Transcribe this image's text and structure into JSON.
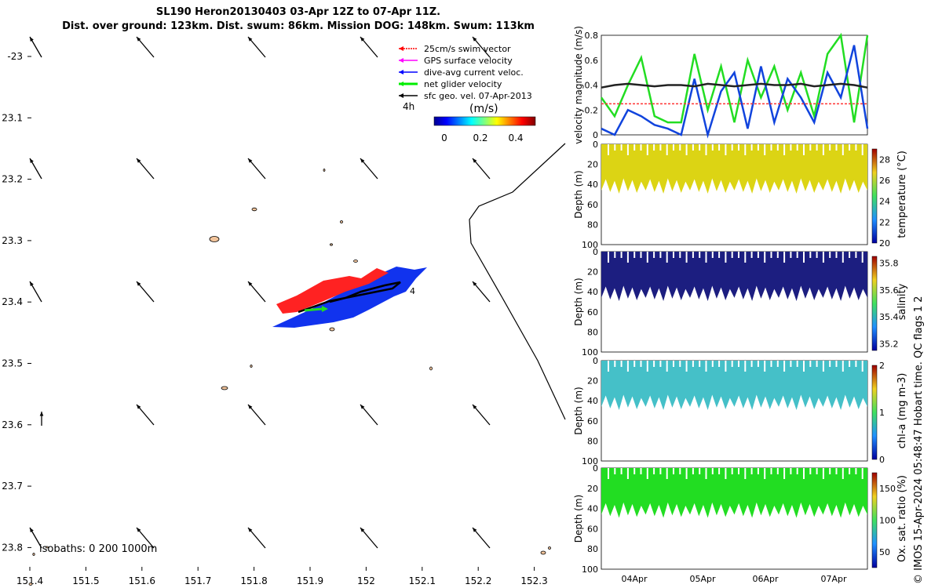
{
  "title": {
    "line1": "SL190 Heron20130403 03-Apr 12Z to 07-Apr 11Z.",
    "line2": "Dist. over ground: 123km. Dist. swum: 86km. Mission DOG: 148km. Swum: 113km"
  },
  "map": {
    "x_ticks": [
      "151.4",
      "151.5",
      "151.6",
      "151.7",
      "151.8",
      "151.9",
      "152",
      "152.1",
      "152.2",
      "152.3"
    ],
    "y_ticks": [
      "-23",
      "23.1",
      "23.2",
      "23.3",
      "23.4",
      "23.5",
      "23.6",
      "23.7",
      "23.8"
    ],
    "legend": [
      {
        "label": "25cm/s swim vector",
        "color": "#ff0000"
      },
      {
        "label": "GPS surface velocity",
        "color": "#ff00ff"
      },
      {
        "label": "dive-avg current veloc.",
        "color": "#0000ff"
      },
      {
        "label": "net glider velocity",
        "color": "#00ee00"
      },
      {
        "label": "sfc geo. vel. 07-Apr-2013",
        "color": "#000000"
      }
    ],
    "time_label": "4h",
    "colorbar_title": "(m/s)",
    "colorbar_ticks": [
      "0",
      "0.2",
      "0.4"
    ],
    "track_end_label": "4",
    "isobaths_label": "isobaths: 0   200  1000m"
  },
  "chart_data": [
    {
      "type": "line",
      "title": "",
      "ylabel": "velocity magnitude (m/s)",
      "ylim": [
        0,
        0.8
      ],
      "y_ticks": [
        "0",
        "0.2",
        "0.4",
        "0.6",
        "0.8"
      ],
      "x": [
        0,
        0.05,
        0.1,
        0.15,
        0.2,
        0.25,
        0.3,
        0.35,
        0.4,
        0.45,
        0.5,
        0.55,
        0.6,
        0.65,
        0.7,
        0.75,
        0.8,
        0.85,
        0.9,
        0.95,
        1.0
      ],
      "series": [
        {
          "name": "net glider velocity",
          "color": "#22dd22",
          "values": [
            0.3,
            0.15,
            0.4,
            0.62,
            0.15,
            0.1,
            0.1,
            0.65,
            0.2,
            0.55,
            0.1,
            0.6,
            0.3,
            0.55,
            0.2,
            0.5,
            0.15,
            0.65,
            0.8,
            0.1,
            0.8
          ]
        },
        {
          "name": "dive-avg current veloc.",
          "color": "#1144dd",
          "values": [
            0.05,
            0.0,
            0.2,
            0.15,
            0.08,
            0.05,
            0.0,
            0.45,
            0.0,
            0.35,
            0.5,
            0.05,
            0.55,
            0.1,
            0.45,
            0.3,
            0.1,
            0.5,
            0.3,
            0.72,
            0.05
          ]
        },
        {
          "name": "sfc geo. vel.",
          "color": "#222222",
          "values": [
            0.38,
            0.4,
            0.41,
            0.4,
            0.39,
            0.4,
            0.4,
            0.39,
            0.41,
            0.4,
            0.39,
            0.4,
            0.41,
            0.4,
            0.4,
            0.41,
            0.39,
            0.4,
            0.41,
            0.4,
            0.38
          ]
        },
        {
          "name": "swim vector",
          "color": "#ff3333",
          "values": [
            0.25,
            0.25,
            0.25,
            0.25,
            0.25,
            0.25,
            0.25,
            0.25,
            0.25,
            0.25,
            0.25,
            0.25,
            0.25,
            0.25,
            0.25,
            0.25,
            0.25,
            0.25,
            0.25,
            0.25,
            0.25
          ]
        }
      ]
    },
    {
      "type": "heatmap",
      "ylabel": "Depth (m)",
      "colorbar_label": "temperature (°C)",
      "clim": [
        20,
        29
      ],
      "colorbar_ticks": [
        "20",
        "22",
        "24",
        "26",
        "28"
      ],
      "y_ticks": [
        "0",
        "20",
        "40",
        "60",
        "80",
        "100"
      ],
      "fill_color": "#dcd414",
      "depth_range_m": [
        0,
        50
      ]
    },
    {
      "type": "heatmap",
      "ylabel": "Depth (m)",
      "colorbar_label": "salinity",
      "clim": [
        35.15,
        35.85
      ],
      "colorbar_ticks": [
        "35.2",
        "35.4",
        "35.6",
        "35.8"
      ],
      "y_ticks": [
        "0",
        "20",
        "40",
        "60",
        "80",
        "100"
      ],
      "fill_color": "#1c1e80",
      "depth_range_m": [
        0,
        50
      ]
    },
    {
      "type": "heatmap",
      "ylabel": "Depth (m)",
      "colorbar_label": "chl-a (mg m-3)",
      "clim": [
        0,
        2
      ],
      "colorbar_ticks": [
        "0",
        "1",
        "2"
      ],
      "y_ticks": [
        "0",
        "20",
        "40",
        "60",
        "80",
        "100"
      ],
      "fill_color": "#45c0c8",
      "depth_range_m": [
        0,
        50
      ]
    },
    {
      "type": "heatmap",
      "ylabel": "Depth (m)",
      "colorbar_label": "Ox. sat. ratio (%)",
      "clim": [
        25,
        175
      ],
      "colorbar_ticks": [
        "50",
        "100",
        "150"
      ],
      "y_ticks": [
        "0",
        "20",
        "40",
        "60",
        "80",
        "100"
      ],
      "fill_color": "#22dd22",
      "depth_range_m": [
        0,
        50
      ],
      "x_ticks": [
        "04Apr",
        "05Apr",
        "06Apr",
        "07Apr"
      ]
    }
  ],
  "qc_text": "© IMOS 15-Apr-2024 05:48:47 Hobart time. QC flags 1  2"
}
